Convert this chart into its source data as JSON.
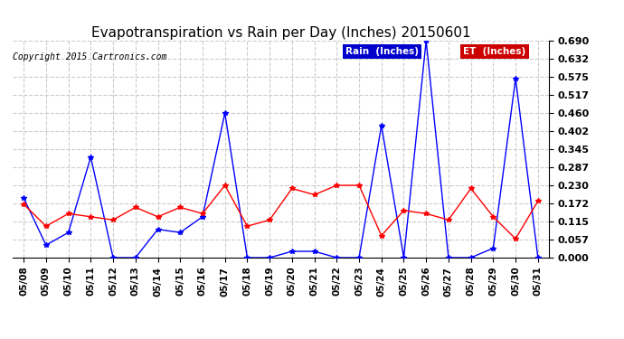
{
  "title": "Evapotranspiration vs Rain per Day (Inches) 20150601",
  "copyright": "Copyright 2015 Cartronics.com",
  "x_labels": [
    "05/08",
    "05/09",
    "05/10",
    "05/11",
    "05/12",
    "05/13",
    "05/14",
    "05/15",
    "05/16",
    "05/17",
    "05/18",
    "05/19",
    "05/20",
    "05/21",
    "05/22",
    "05/23",
    "05/24",
    "05/25",
    "05/26",
    "05/27",
    "05/28",
    "05/29",
    "05/30",
    "05/31"
  ],
  "rain_inches": [
    0.19,
    0.04,
    0.08,
    0.32,
    0.0,
    0.0,
    0.09,
    0.08,
    0.13,
    0.46,
    0.0,
    0.0,
    0.02,
    0.02,
    0.0,
    0.0,
    0.42,
    0.0,
    0.69,
    0.0,
    0.0,
    0.03,
    0.57,
    0.0
  ],
  "et_inches": [
    0.17,
    0.1,
    0.14,
    0.13,
    0.12,
    0.16,
    0.13,
    0.16,
    0.14,
    0.23,
    0.1,
    0.12,
    0.22,
    0.2,
    0.23,
    0.23,
    0.07,
    0.15,
    0.14,
    0.12,
    0.22,
    0.13,
    0.06,
    0.18
  ],
  "rain_color": "#0000ff",
  "et_color": "#ff0000",
  "bg_color": "#ffffff",
  "grid_color": "#cccccc",
  "ylim": [
    0.0,
    0.69
  ],
  "yticks": [
    0.0,
    0.057,
    0.115,
    0.172,
    0.23,
    0.287,
    0.345,
    0.402,
    0.46,
    0.517,
    0.575,
    0.632,
    0.69
  ],
  "legend_rain_bg": "#0000cc",
  "legend_et_bg": "#cc0000",
  "legend_rain_text": "Rain  (Inches)",
  "legend_et_text": "ET  (Inches)"
}
